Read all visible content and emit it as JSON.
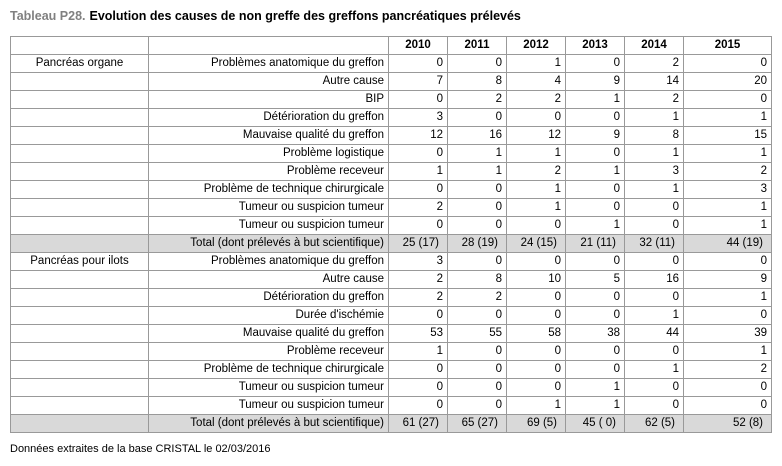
{
  "title": {
    "prefix": "Tableau P28.",
    "text": "Evolution des causes de non greffe des greffons pancréatiques prélevés"
  },
  "table": {
    "years": [
      "2010",
      "2011",
      "2012",
      "2013",
      "2014",
      "2015"
    ],
    "sections": [
      {
        "group": "Pancréas organe",
        "rows": [
          {
            "label": "Problèmes anatomique du greffon",
            "values": [
              0,
              0,
              1,
              0,
              2,
              0
            ]
          },
          {
            "label": "Autre cause",
            "values": [
              7,
              8,
              4,
              9,
              14,
              20
            ]
          },
          {
            "label": "BIP",
            "values": [
              0,
              2,
              2,
              1,
              2,
              0
            ]
          },
          {
            "label": "Détérioration du greffon",
            "values": [
              3,
              0,
              0,
              0,
              1,
              1
            ]
          },
          {
            "label": "Mauvaise qualité du greffon",
            "values": [
              12,
              16,
              12,
              9,
              8,
              15
            ]
          },
          {
            "label": "Problème logistique",
            "values": [
              0,
              1,
              1,
              0,
              1,
              1
            ]
          },
          {
            "label": "Problème receveur",
            "values": [
              1,
              1,
              2,
              1,
              3,
              2
            ]
          },
          {
            "label": "Problème de technique chirurgicale",
            "values": [
              0,
              0,
              1,
              0,
              1,
              3
            ]
          },
          {
            "label": "Tumeur ou suspicion tumeur",
            "values": [
              2,
              0,
              1,
              0,
              0,
              1
            ]
          },
          {
            "label": "Tumeur ou suspicion tumeur",
            "values": [
              0,
              0,
              0,
              1,
              0,
              1
            ]
          }
        ],
        "total": {
          "label": "Total (dont prélevés à but scientifique)",
          "values": [
            "25 (17)",
            "28 (19)",
            "24 (15)",
            "21 (11)",
            "32 (11)",
            "44 (19)"
          ]
        }
      },
      {
        "group": "Pancréas pour ilots",
        "rows": [
          {
            "label": "Problèmes anatomique du greffon",
            "values": [
              3,
              0,
              0,
              0,
              0,
              0
            ]
          },
          {
            "label": "Autre cause",
            "values": [
              2,
              8,
              10,
              5,
              16,
              9
            ]
          },
          {
            "label": "Détérioration du greffon",
            "values": [
              2,
              2,
              0,
              0,
              0,
              1
            ]
          },
          {
            "label": "Durée d'ischémie",
            "values": [
              0,
              0,
              0,
              0,
              1,
              0
            ]
          },
          {
            "label": "Mauvaise qualité du greffon",
            "values": [
              53,
              55,
              58,
              38,
              44,
              39
            ]
          },
          {
            "label": "Problème receveur",
            "values": [
              1,
              0,
              0,
              0,
              0,
              1
            ]
          },
          {
            "label": "Problème de technique chirurgicale",
            "values": [
              0,
              0,
              0,
              0,
              1,
              2
            ]
          },
          {
            "label": "Tumeur ou suspicion tumeur",
            "values": [
              0,
              0,
              0,
              1,
              0,
              0
            ]
          },
          {
            "label": "Tumeur ou suspicion tumeur",
            "values": [
              0,
              0,
              1,
              1,
              0,
              0
            ]
          }
        ],
        "total": {
          "label": "Total (dont prélevés à but scientifique)",
          "values": [
            "61 (27)",
            "65 (27)",
            "69 (5)",
            "45 ( 0)",
            "62 (5)",
            "52 (8)"
          ]
        }
      }
    ]
  },
  "footer": "Données extraites de la base CRISTAL le 02/03/2016",
  "colors": {
    "total_row_bg": "#d9d9d9",
    "border": "#999999",
    "title_prefix": "#808080"
  }
}
